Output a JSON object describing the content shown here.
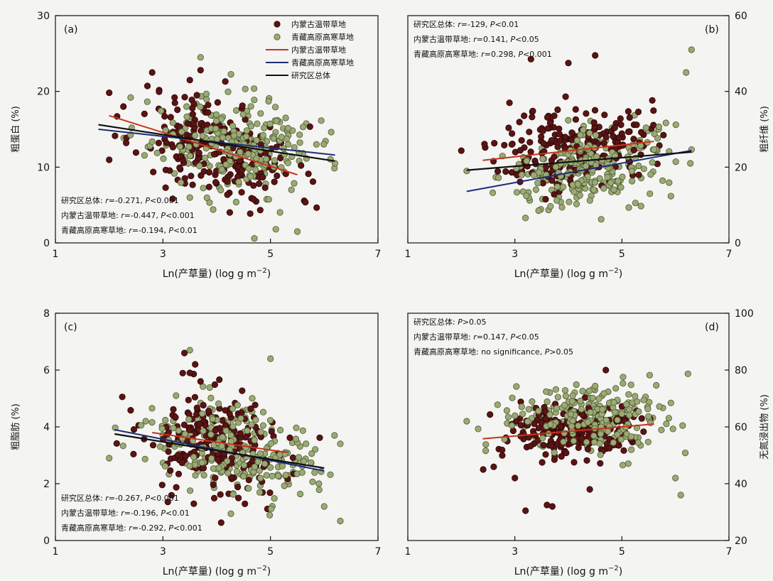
{
  "colors": {
    "nm_points": "#5a1414",
    "qt_points": "#9aaa74",
    "nm_line": "#c8321e",
    "qt_line": "#1c2e78",
    "total_line": "#101010"
  },
  "legend": {
    "items": [
      {
        "label": "内蒙古温带草地",
        "kind": "point",
        "color_key": "nm_points"
      },
      {
        "label": "青藏高原高寒草地",
        "kind": "point",
        "color_key": "qt_points"
      },
      {
        "label": "内蒙古温带草地",
        "kind": "line",
        "color_key": "nm_line"
      },
      {
        "label": "青藏高原高寒草地",
        "kind": "line",
        "color_key": "qt_line"
      },
      {
        "label": "研究区总体",
        "kind": "line",
        "color_key": "total_line"
      }
    ]
  },
  "chart_data": [
    {
      "type": "scatter",
      "panel": "(a)",
      "xlabel": "Ln(产草量) (log g m",
      "xlabel_sup": "−2",
      "xlabel_end": ")",
      "ylabel": "粗蛋白 (%)",
      "yaxis_side": "left",
      "xlim": [
        1,
        7
      ],
      "xticks": [
        1,
        3,
        5,
        7
      ],
      "ylim": [
        0,
        30
      ],
      "yticks": [
        0,
        10,
        20,
        30
      ],
      "ann_pos": "bottom-left",
      "annotations": [
        {
          "prefix": "研究区总体: ",
          "r": "r",
          "stat": "=-0.271, ",
          "p": "P",
          "sig": "<0.001"
        },
        {
          "prefix": "内蒙古温带草地: ",
          "r": "r",
          "stat": "=-0.447, ",
          "p": "P",
          "sig": "<0.001"
        },
        {
          "prefix": "青藏高原高寒草地: ",
          "r": "r",
          "stat": "=-0.194, ",
          "p": "P",
          "sig": "<0.01"
        }
      ],
      "lines": [
        {
          "name_key": "nm_line",
          "x": [
            2.0,
            5.5
          ],
          "y": [
            16.8,
            9.0
          ]
        },
        {
          "name_key": "qt_line",
          "x": [
            1.8,
            6.2
          ],
          "y": [
            15.0,
            11.6
          ]
        },
        {
          "name_key": "total_line",
          "x": [
            1.8,
            6.2
          ],
          "y": [
            15.6,
            10.8
          ]
        }
      ],
      "gen": {
        "nm": {
          "n": 220,
          "xm": 4.0,
          "xs": 0.75,
          "slope": -2.2,
          "ymid": 12.4,
          "noise": 3.4,
          "seed": 11
        },
        "qt": {
          "n": 260,
          "xm": 4.3,
          "xs": 0.75,
          "slope": -0.8,
          "ymid": 13.0,
          "noise": 3.0,
          "seed": 23
        }
      },
      "extra": {
        "nm": [
          [
            2.8,
            22.5
          ],
          [
            3.7,
            22.8
          ],
          [
            3.5,
            21.5
          ]
        ],
        "qt": [
          [
            3.7,
            24.5
          ],
          [
            4.7,
            0.6
          ],
          [
            5.1,
            1.8
          ],
          [
            5.5,
            1.5
          ],
          [
            6.2,
            10.5
          ],
          [
            2.4,
            19.2
          ]
        ]
      }
    },
    {
      "type": "scatter",
      "panel": "(b)",
      "xlabel": "Ln(产草量) (log g m",
      "xlabel_sup": "−2",
      "xlabel_end": ")",
      "ylabel": "粗纤维 (%)",
      "yaxis_side": "right",
      "xlim": [
        1,
        7
      ],
      "xticks": [
        1,
        3,
        5,
        7
      ],
      "ylim": [
        0,
        60
      ],
      "yticks": [
        0,
        20,
        40,
        60
      ],
      "ann_pos": "top-left",
      "annotations": [
        {
          "prefix": "研究区总体: ",
          "r": "r",
          "stat": "=-129, ",
          "p": "P",
          "sig": "<0.01"
        },
        {
          "prefix": "内蒙古温带草地: ",
          "r": "r",
          "stat": "=0.141, ",
          "p": "P",
          "sig": "<0.05"
        },
        {
          "prefix": "青藏高原高寒草地: ",
          "r": "r",
          "stat": "=0.298, ",
          "p": "P",
          "sig": "<0.001"
        }
      ],
      "lines": [
        {
          "name_key": "nm_line",
          "x": [
            2.4,
            5.6
          ],
          "y": [
            21.8,
            26.8
          ]
        },
        {
          "name_key": "qt_line",
          "x": [
            2.1,
            6.3
          ],
          "y": [
            13.6,
            24.4
          ]
        },
        {
          "name_key": "total_line",
          "x": [
            2.1,
            6.3
          ],
          "y": [
            19.2,
            24.0
          ]
        }
      ],
      "gen": {
        "nm": {
          "n": 220,
          "xm": 4.1,
          "xs": 0.7,
          "slope": 1.6,
          "ymid": 25.5,
          "noise": 5.5,
          "seed": 37
        },
        "qt": {
          "n": 260,
          "xm": 4.4,
          "xs": 0.75,
          "slope": 2.6,
          "ymid": 20.0,
          "noise": 5.0,
          "seed": 41
        }
      },
      "extra": {
        "nm": [
          [
            3.3,
            48.5
          ],
          [
            4.5,
            49.5
          ],
          [
            4.0,
            47.5
          ],
          [
            2.9,
            37.0
          ]
        ],
        "qt": [
          [
            6.3,
            51.0
          ],
          [
            6.2,
            45.0
          ],
          [
            2.1,
            19.0
          ]
        ]
      }
    },
    {
      "type": "scatter",
      "panel": "(c)",
      "xlabel": "Ln(产草量) (log g m",
      "xlabel_sup": "−2",
      "xlabel_end": ")",
      "ylabel": "粗脂肪 (%)",
      "yaxis_side": "left",
      "xlim": [
        1,
        7
      ],
      "xticks": [
        1,
        3,
        5,
        7
      ],
      "ylim": [
        0,
        8
      ],
      "yticks": [
        0,
        2,
        4,
        6,
        8
      ],
      "ann_pos": "bottom-left",
      "annotations": [
        {
          "prefix": "研究区总体: ",
          "r": "r",
          "stat": "=-0.267, ",
          "p": "P",
          "sig": "<0.001"
        },
        {
          "prefix": "内蒙古温带草地: ",
          "r": "r",
          "stat": "=-0.196, ",
          "p": "P",
          "sig": "<0.01"
        },
        {
          "prefix": "青藏高原高寒草地: ",
          "r": "r",
          "stat": "=-0.292, ",
          "p": "P",
          "sig": "<0.001"
        }
      ],
      "lines": [
        {
          "name_key": "nm_line",
          "x": [
            2.8,
            5.3
          ],
          "y": [
            3.8,
            3.1
          ]
        },
        {
          "name_key": "qt_line",
          "x": [
            2.1,
            6.0
          ],
          "y": [
            3.9,
            2.45
          ]
        },
        {
          "name_key": "total_line",
          "x": [
            2.1,
            6.0
          ],
          "y": [
            3.75,
            2.55
          ]
        }
      ],
      "gen": {
        "nm": {
          "n": 220,
          "xm": 4.0,
          "xs": 0.7,
          "slope": -0.3,
          "ymid": 3.35,
          "noise": 0.95,
          "seed": 53
        },
        "qt": {
          "n": 260,
          "xm": 4.3,
          "xs": 0.75,
          "slope": -0.35,
          "ymid": 3.1,
          "noise": 0.8,
          "seed": 67
        }
      },
      "extra": {
        "nm": [
          [
            3.4,
            6.6
          ],
          [
            3.6,
            6.2
          ],
          [
            3.5,
            5.9
          ],
          [
            3.7,
            5.6
          ]
        ],
        "qt": [
          [
            3.5,
            6.7
          ],
          [
            5.0,
            6.4
          ],
          [
            6.0,
            1.2
          ],
          [
            5.9,
            2.0
          ],
          [
            2.0,
            2.9
          ]
        ]
      }
    },
    {
      "type": "scatter",
      "panel": "(d)",
      "xlabel": "Ln(产草量) (log g m",
      "xlabel_sup": "−2",
      "xlabel_end": ")",
      "ylabel": "无氮浸出物 (%)",
      "yaxis_side": "right",
      "xlim": [
        1,
        7
      ],
      "xticks": [
        1,
        3,
        5,
        7
      ],
      "ylim": [
        20,
        100
      ],
      "yticks": [
        20,
        40,
        60,
        80,
        100
      ],
      "ann_pos": "top-left",
      "annotations": [
        {
          "prefix": "研究区总体: ",
          "r": "",
          "stat": "",
          "p": "P",
          "sig": ">0.05"
        },
        {
          "prefix": "内蒙古温带草地: ",
          "r": "r",
          "stat": "=0.147, ",
          "p": "P",
          "sig": "<0.05"
        },
        {
          "prefix": "青藏高原高寒草地: no significance, ",
          "r": "",
          "stat": "",
          "p": "P",
          "sig": ">0.05"
        }
      ],
      "lines": [
        {
          "name_key": "nm_line",
          "x": [
            2.4,
            5.6
          ],
          "y": [
            55.8,
            61.0
          ]
        }
      ],
      "gen": {
        "nm": {
          "n": 220,
          "xm": 4.1,
          "xs": 0.7,
          "slope": 1.5,
          "ymid": 58.5,
          "noise": 5.0,
          "seed": 71
        },
        "qt": {
          "n": 260,
          "xm": 4.4,
          "xs": 0.75,
          "slope": 0.3,
          "ymid": 63.0,
          "noise": 6.0,
          "seed": 83
        }
      },
      "extra": {
        "nm": [
          [
            4.7,
            80.0
          ],
          [
            3.2,
            30.5
          ],
          [
            3.6,
            32.5
          ],
          [
            3.7,
            32.0
          ],
          [
            4.4,
            38.0
          ],
          [
            3.0,
            42.0
          ]
        ],
        "qt": [
          [
            6.1,
            36.0
          ],
          [
            6.0,
            42.0
          ],
          [
            2.1,
            62.0
          ]
        ]
      }
    }
  ]
}
